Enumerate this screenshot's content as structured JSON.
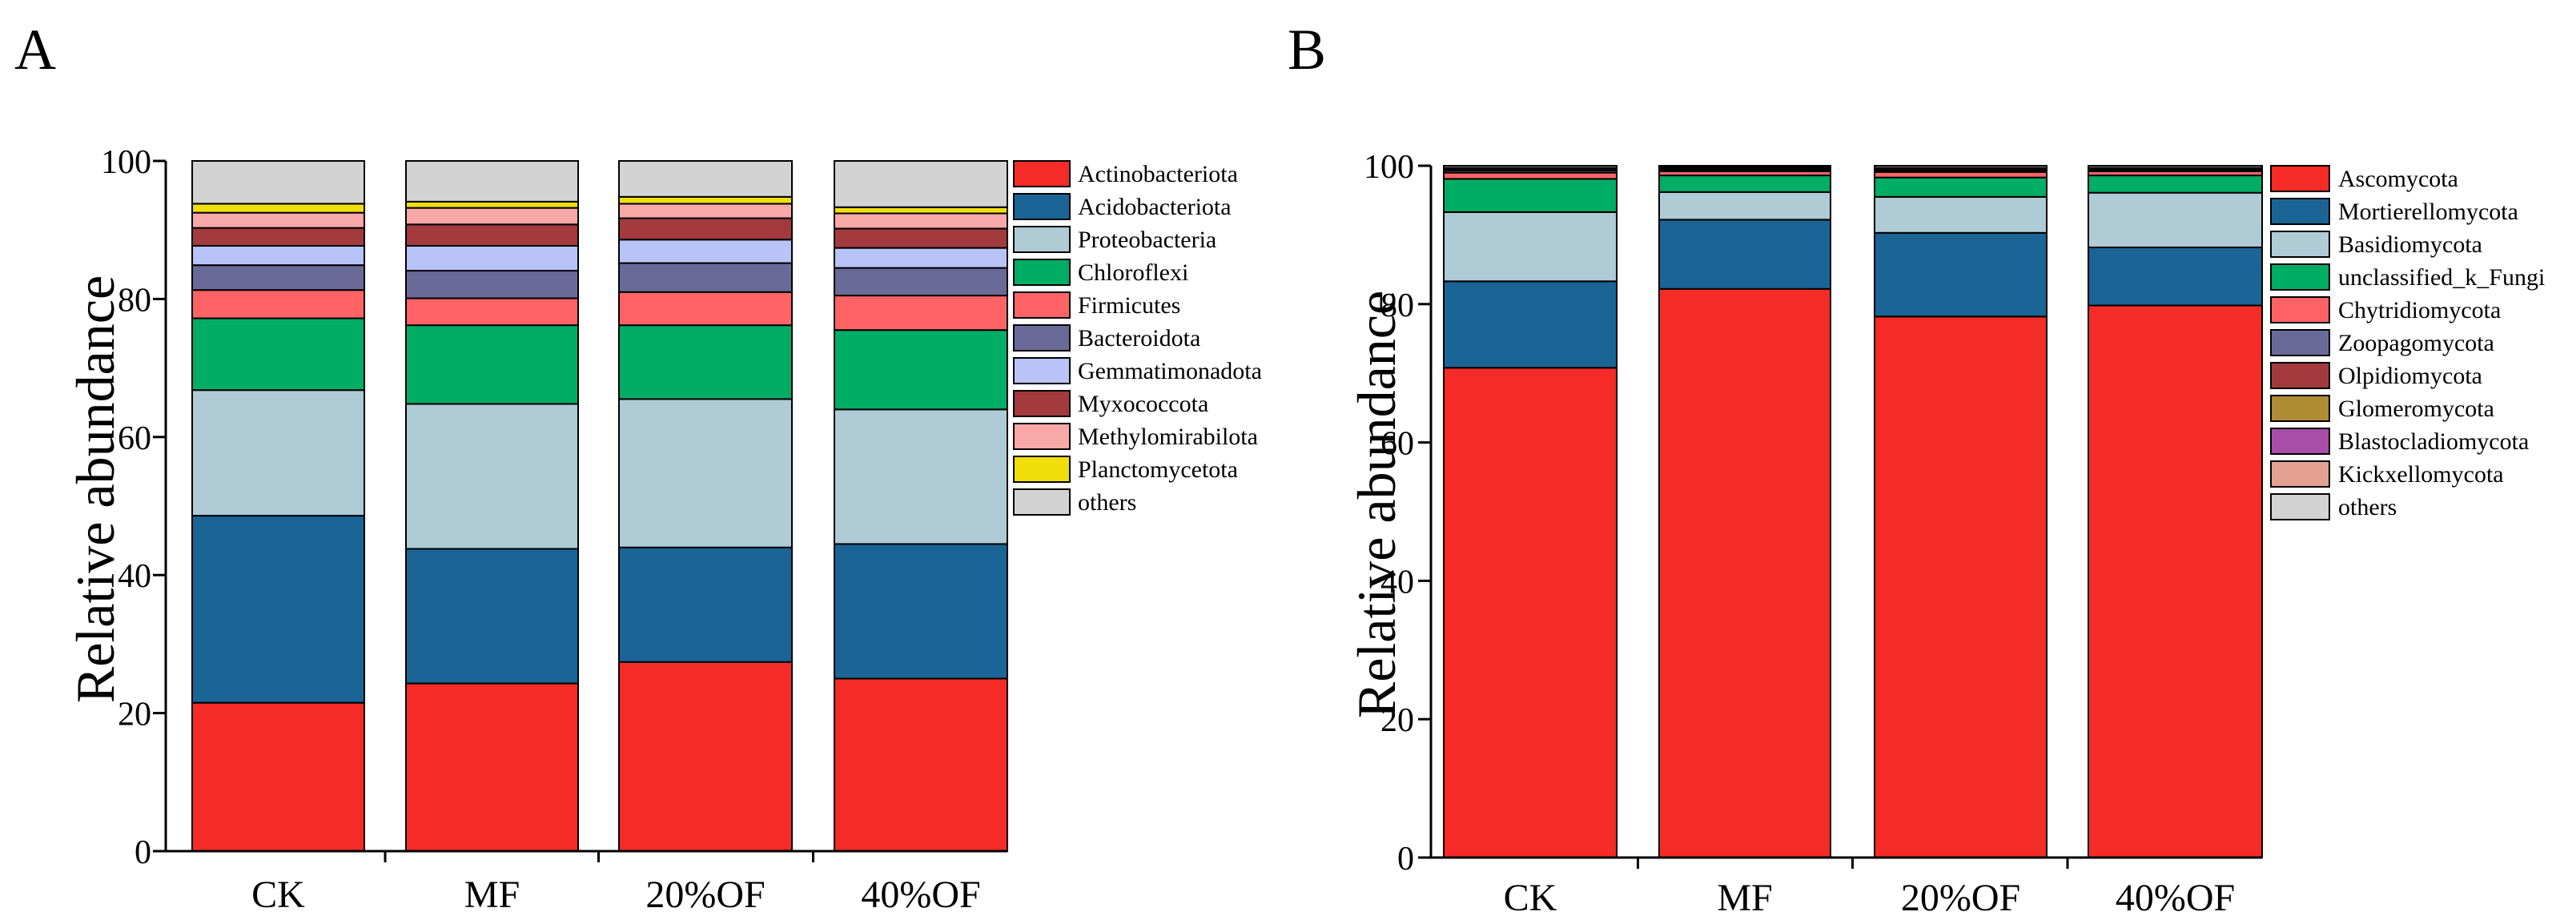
{
  "chart_data": [
    {
      "type": "bar",
      "stacked": true,
      "panel_label": "A",
      "categories": [
        "CK",
        "MF",
        "20%OF",
        "40%OF"
      ],
      "ylabel": "Relative abundance",
      "ylim": [
        0,
        100
      ],
      "yticks": [
        0,
        20,
        40,
        60,
        80,
        100
      ],
      "grid": false,
      "legend": "right",
      "series": [
        {
          "name": "Actinobacteriota",
          "color": "#F42B27",
          "values": [
            21.5,
            24.3,
            27.4,
            25.0
          ]
        },
        {
          "name": "Acidobacteriota",
          "color": "#1A6496",
          "values": [
            27.1,
            19.5,
            16.6,
            19.5
          ]
        },
        {
          "name": "Proteobacteria",
          "color": "#AECBD6",
          "values": [
            18.2,
            21.0,
            21.5,
            19.5
          ]
        },
        {
          "name": "Chloroflexi",
          "color": "#00AD65",
          "values": [
            10.4,
            11.4,
            10.7,
            11.5
          ]
        },
        {
          "name": "Firmicutes",
          "color": "#FF6366",
          "values": [
            4.1,
            3.9,
            4.8,
            5.0
          ]
        },
        {
          "name": "Bacteroidota",
          "color": "#6A6A99",
          "values": [
            3.6,
            4.0,
            4.2,
            4.0
          ]
        },
        {
          "name": "Gemmatimonadota",
          "color": "#B9C3F7",
          "values": [
            2.8,
            3.6,
            3.4,
            2.9
          ]
        },
        {
          "name": "Myxococcota",
          "color": "#A23A3E",
          "values": [
            2.6,
            3.1,
            3.1,
            2.8
          ]
        },
        {
          "name": "Methylomirabilota",
          "color": "#F9A8A8",
          "values": [
            2.2,
            2.4,
            2.1,
            2.2
          ]
        },
        {
          "name": "Planctomycetota",
          "color": "#F1DE0B",
          "values": [
            1.3,
            0.9,
            1.0,
            0.9
          ]
        },
        {
          "name": "others",
          "color": "#D3D3D3",
          "values": [
            6.2,
            5.9,
            5.2,
            6.7
          ]
        }
      ]
    },
    {
      "type": "bar",
      "stacked": true,
      "panel_label": "B",
      "categories": [
        "CK",
        "MF",
        "20%OF",
        "40%OF"
      ],
      "ylabel": "Relative abundance",
      "ylim": [
        0,
        100
      ],
      "yticks": [
        0,
        20,
        40,
        60,
        80,
        100
      ],
      "grid": false,
      "legend": "right",
      "series": [
        {
          "name": "Ascomycota",
          "color": "#F42B27",
          "values": [
            70.8,
            82.2,
            78.2,
            79.8
          ]
        },
        {
          "name": "Mortierellomycota",
          "color": "#1A6496",
          "values": [
            12.5,
            10.0,
            12.1,
            8.4
          ]
        },
        {
          "name": "Basidiomycota",
          "color": "#AECBD6",
          "values": [
            10.0,
            4.0,
            5.2,
            7.9
          ]
        },
        {
          "name": "unclassified_k_Fungi",
          "color": "#00AD65",
          "values": [
            4.8,
            2.4,
            2.8,
            2.5
          ]
        },
        {
          "name": "Chytridiomycota",
          "color": "#FF6366",
          "values": [
            0.9,
            0.6,
            0.8,
            0.6
          ]
        },
        {
          "name": "Zoopagomycota",
          "color": "#6A6A99",
          "values": [
            0.3,
            0.2,
            0.2,
            0.2
          ]
        },
        {
          "name": "Olpidiomycota",
          "color": "#A23A3E",
          "values": [
            0.2,
            0.2,
            0.2,
            0.1
          ]
        },
        {
          "name": "Glomeromycota",
          "color": "#B08C34",
          "values": [
            0.1,
            0.1,
            0.1,
            0.1
          ]
        },
        {
          "name": "Blastocladiomycota",
          "color": "#A84DA8",
          "values": [
            0.05,
            0.05,
            0.05,
            0.05
          ]
        },
        {
          "name": "Kickxellomycota",
          "color": "#E4A090",
          "values": [
            0.05,
            0.05,
            0.05,
            0.05
          ]
        },
        {
          "name": "others",
          "color": "#D3D3D3",
          "values": [
            0.3,
            0.2,
            0.3,
            0.3
          ]
        }
      ]
    }
  ]
}
